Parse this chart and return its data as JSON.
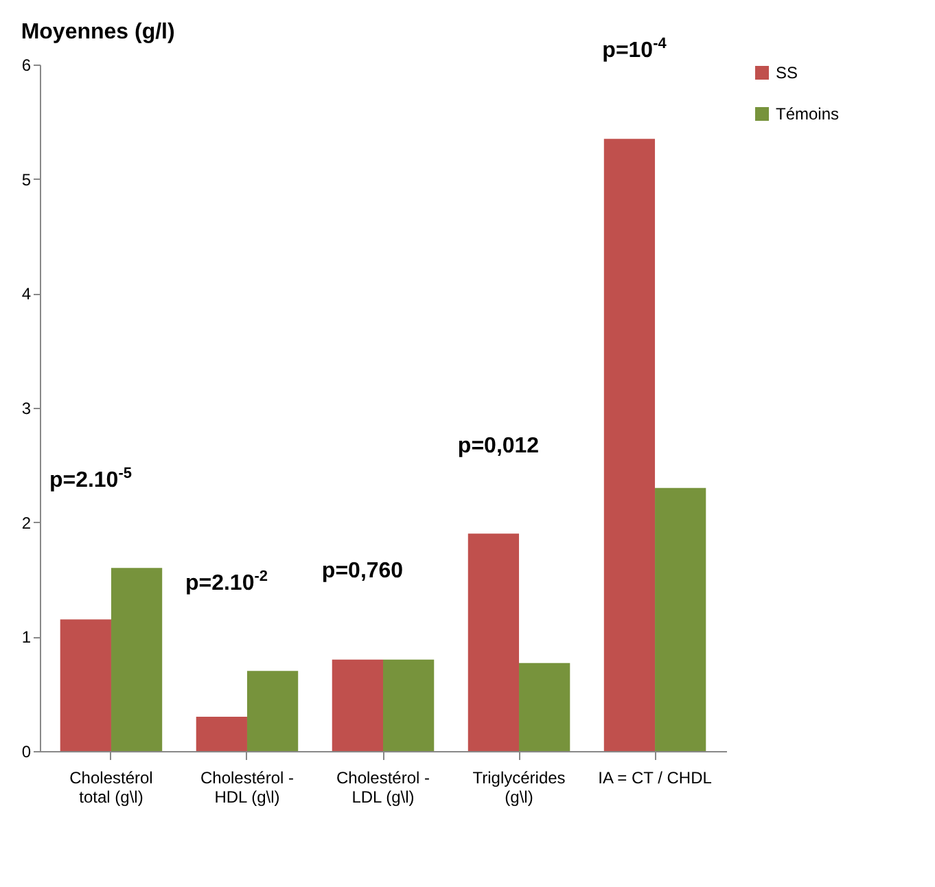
{
  "chart_data": {
    "type": "bar",
    "title": "Moyennes (g/l)",
    "categories": [
      "Cholestérol\ntotal (g\\l)",
      "Cholestérol -\nHDL (g\\l)",
      "Cholestérol -\nLDL (g\\l)",
      "Triglycérides\n(g\\l)",
      "IA = CT / CHDL"
    ],
    "series": [
      {
        "name": "SS",
        "color": "#c0504d",
        "values": [
          1.15,
          0.3,
          0.8,
          1.9,
          5.35
        ]
      },
      {
        "name": "Témoins",
        "color": "#77933c",
        "values": [
          1.6,
          0.7,
          0.8,
          0.77,
          2.3
        ]
      }
    ],
    "ylim": [
      0,
      6
    ],
    "yticks": [
      0,
      1,
      2,
      3,
      4,
      5,
      6
    ],
    "annotations": [
      "p=2.10$^{-5}$",
      "p=2.10$^{-2}$",
      "p=0,760",
      "p=0,012",
      "p=10$^{-4}$"
    ],
    "grid": false,
    "legend": "right"
  }
}
